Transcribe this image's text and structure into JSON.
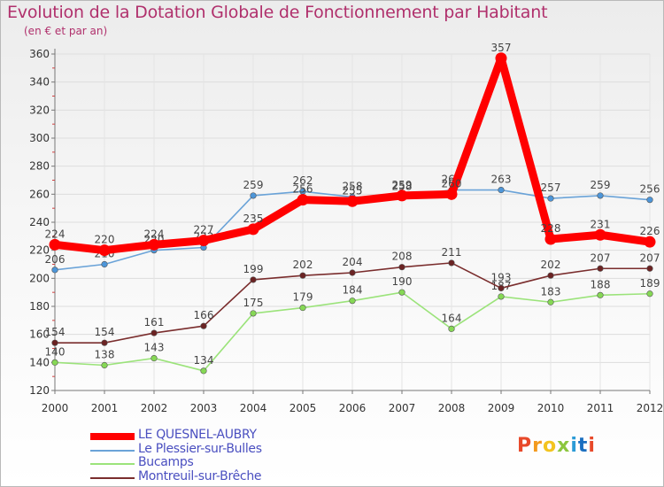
{
  "header": {
    "title": "Evolution de la Dotation Globale de Fonctionnement par Habitant",
    "subtitle": "(en € et par an)"
  },
  "brand": {
    "letters": [
      "P",
      "r",
      "o",
      "x",
      "i",
      "t",
      "i"
    ],
    "colors": [
      "#e8492a",
      "#f39a1f",
      "#f3c41f",
      "#8cc63e",
      "#2c9bd6",
      "#1b6fc0",
      "#e8492a"
    ]
  },
  "chart_data": {
    "type": "line",
    "title": "Evolution de la Dotation Globale de Fonctionnement par Habitant",
    "subtitle": "(en € et par an)",
    "xlabel": "",
    "ylabel": "",
    "x": [
      "2000",
      "2001",
      "2002",
      "2003",
      "2004",
      "2005",
      "2006",
      "2007",
      "2008",
      "2009",
      "2010",
      "2011",
      "2012"
    ],
    "ylim": [
      120,
      360
    ],
    "yticks": [
      120,
      140,
      160,
      180,
      200,
      220,
      240,
      260,
      280,
      300,
      320,
      340,
      360
    ],
    "grid": true,
    "legend_position": "bottom-left",
    "series": [
      {
        "name": "LE QUESNEL-AUBRY",
        "color": "#ff0000",
        "marker": "#ff0000",
        "emphasis": true,
        "values": [
          224,
          220,
          224,
          227,
          235,
          256,
          255,
          259,
          260,
          357,
          228,
          231,
          226
        ]
      },
      {
        "name": "Le Plessier-sur-Bulles",
        "color": "#6aa3d8",
        "marker": "#4d96d9",
        "values": [
          206,
          210,
          220,
          222,
          259,
          262,
          258,
          258,
          263,
          263,
          257,
          259,
          256
        ]
      },
      {
        "name": "Bucamps",
        "color": "#9be37a",
        "marker": "#86d855",
        "values": [
          140,
          138,
          143,
          134,
          175,
          179,
          184,
          190,
          164,
          187,
          183,
          188,
          189
        ]
      },
      {
        "name": "Montreuil-sur-Brêche",
        "color": "#7a2d2d",
        "marker": "#6b2323",
        "values": [
          154,
          154,
          161,
          166,
          199,
          202,
          204,
          208,
          211,
          193,
          202,
          207,
          207
        ]
      }
    ]
  }
}
